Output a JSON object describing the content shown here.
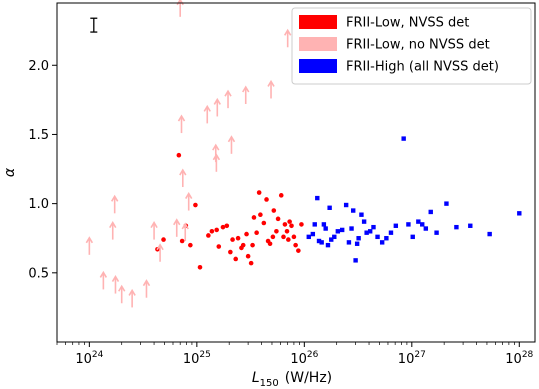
{
  "chart_data": {
    "type": "scatter",
    "xlabel_main": "L",
    "xlabel_sub": "150",
    "xlabel_unit": "(W/Hz)",
    "ylabel": "α",
    "xscale": "log",
    "xlim": [
      5e+23,
      1.4e+28
    ],
    "ylim": [
      0.0,
      2.45
    ],
    "grid": false,
    "legend_position": "top-right",
    "x_tick_labels": [
      {
        "value": 1e+24,
        "base": "10",
        "exp": "24"
      },
      {
        "value": 1e+25,
        "base": "10",
        "exp": "25"
      },
      {
        "value": 1e+26,
        "base": "10",
        "exp": "26"
      },
      {
        "value": 1e+27,
        "base": "10",
        "exp": "27"
      },
      {
        "value": 1e+28,
        "base": "10",
        "exp": "28"
      }
    ],
    "y_ticks": [
      {
        "value": 0.5,
        "label": "0.5"
      },
      {
        "value": 1.0,
        "label": "1.0"
      },
      {
        "value": 1.5,
        "label": "1.5"
      },
      {
        "value": 2.0,
        "label": "2.0"
      }
    ],
    "error_bar": {
      "x": 1.1e+24,
      "y_low": 2.24,
      "y_high": 2.34
    },
    "series": [
      {
        "name": "FRII-Low, NVSS det",
        "marker": "circle",
        "color": "#ff0000",
        "points": [
          [
            4.3e+24,
            0.67
          ],
          [
            4.9e+24,
            0.74
          ],
          [
            6.8e+24,
            1.35
          ],
          [
            7.3e+24,
            0.73
          ],
          [
            7.9e+24,
            0.84
          ],
          [
            8.7e+24,
            0.7
          ],
          [
            9.7e+24,
            0.99
          ],
          [
            1.07e+25,
            0.54
          ],
          [
            1.28e+25,
            0.77
          ],
          [
            1.38e+25,
            0.8
          ],
          [
            1.53e+25,
            0.81
          ],
          [
            1.6e+25,
            0.69
          ],
          [
            1.75e+25,
            0.83
          ],
          [
            1.9e+25,
            0.84
          ],
          [
            2.05e+25,
            0.65
          ],
          [
            2.15e+25,
            0.74
          ],
          [
            2.3e+25,
            0.6
          ],
          [
            2.42e+25,
            0.75
          ],
          [
            2.6e+25,
            0.68
          ],
          [
            2.7e+25,
            0.7
          ],
          [
            2.9e+25,
            0.78
          ],
          [
            3e+25,
            0.62
          ],
          [
            3.2e+25,
            0.57
          ],
          [
            3.3e+25,
            0.7
          ],
          [
            3.4e+25,
            0.9
          ],
          [
            3.6e+25,
            0.79
          ],
          [
            3.8e+25,
            1.08
          ],
          [
            3.9e+25,
            0.92
          ],
          [
            4.2e+25,
            0.86
          ],
          [
            4.45e+25,
            1.03
          ],
          [
            4.6e+25,
            0.73
          ],
          [
            4.8e+25,
            0.71
          ],
          [
            5.1e+25,
            0.76
          ],
          [
            5.2e+25,
            0.95
          ],
          [
            5.5e+25,
            0.8
          ],
          [
            5.7e+25,
            0.89
          ],
          [
            6.1e+25,
            1.06
          ],
          [
            6.4e+25,
            0.76
          ],
          [
            6.6e+25,
            0.85
          ],
          [
            6.9e+25,
            0.8
          ],
          [
            7.1e+25,
            0.74
          ],
          [
            7.3e+25,
            0.87
          ],
          [
            7.6e+25,
            0.84
          ],
          [
            8e+25,
            0.76
          ],
          [
            8.3e+25,
            0.7
          ],
          [
            8.8e+25,
            0.66
          ],
          [
            9.4e+25,
            0.85
          ]
        ]
      },
      {
        "name": "FRII-Low, no NVSS det",
        "marker": "arrow",
        "color": "#ffb3b3",
        "points": [
          [
            1e+24,
            0.63
          ],
          [
            1.35e+24,
            0.38
          ],
          [
            1.65e+24,
            0.74
          ],
          [
            1.72e+24,
            0.93
          ],
          [
            1.75e+24,
            0.35
          ],
          [
            2e+24,
            0.28
          ],
          [
            2.5e+24,
            0.25
          ],
          [
            3.4e+24,
            0.32
          ],
          [
            4e+24,
            0.74
          ],
          [
            4.55e+24,
            0.58
          ],
          [
            6.5e+24,
            0.76
          ],
          [
            7e+24,
            2.35
          ],
          [
            7.2e+24,
            1.51
          ],
          [
            7.4e+24,
            1.12
          ],
          [
            7.8e+24,
            0.73
          ],
          [
            8.4e+24,
            0.95
          ],
          [
            1.25e+25,
            1.58
          ],
          [
            1.5e+25,
            1.3
          ],
          [
            1.52e+25,
            1.23
          ],
          [
            1.55e+25,
            1.63
          ],
          [
            1.95e+25,
            1.69
          ],
          [
            2.1e+25,
            1.36
          ],
          [
            2.85e+25,
            1.72
          ],
          [
            4.9e+25,
            1.76
          ],
          [
            7e+25,
            2.13
          ]
        ]
      },
      {
        "name": "FRII-High (all NVSS det)",
        "marker": "square",
        "color": "#0000ff",
        "points": [
          [
            1.1e+26,
            0.76
          ],
          [
            1.2e+26,
            0.78
          ],
          [
            1.25e+26,
            0.85
          ],
          [
            1.32e+26,
            1.04
          ],
          [
            1.37e+26,
            0.73
          ],
          [
            1.45e+26,
            0.72
          ],
          [
            1.52e+26,
            0.85
          ],
          [
            1.58e+26,
            0.82
          ],
          [
            1.66e+26,
            0.7
          ],
          [
            1.72e+26,
            0.97
          ],
          [
            1.78e+26,
            0.74
          ],
          [
            1.9e+26,
            0.76
          ],
          [
            2.05e+26,
            0.8
          ],
          [
            2.25e+26,
            0.81
          ],
          [
            2.45e+26,
            0.99
          ],
          [
            2.6e+26,
            0.72
          ],
          [
            2.75e+26,
            0.82
          ],
          [
            2.85e+26,
            0.95
          ],
          [
            3e+26,
            0.59
          ],
          [
            3.1e+26,
            0.71
          ],
          [
            3.2e+26,
            0.75
          ],
          [
            3.4e+26,
            0.92
          ],
          [
            3.6e+26,
            0.87
          ],
          [
            3.8e+26,
            0.79
          ],
          [
            4.1e+26,
            0.8
          ],
          [
            4.4e+26,
            0.83
          ],
          [
            4.8e+26,
            0.76
          ],
          [
            5.3e+26,
            0.72
          ],
          [
            5.8e+26,
            0.75
          ],
          [
            6.4e+26,
            0.79
          ],
          [
            7.1e+26,
            0.84
          ],
          [
            8.4e+26,
            1.47
          ],
          [
            9.3e+26,
            0.85
          ],
          [
            1.02e+27,
            0.76
          ],
          [
            1.15e+27,
            0.87
          ],
          [
            1.25e+27,
            0.85
          ],
          [
            1.35e+27,
            0.82
          ],
          [
            1.5e+27,
            0.94
          ],
          [
            1.7e+27,
            0.79
          ],
          [
            2.1e+27,
            1.0
          ],
          [
            2.6e+27,
            0.83
          ],
          [
            3.5e+27,
            0.84
          ],
          [
            5.3e+27,
            0.78
          ],
          [
            1e+28,
            0.93
          ]
        ]
      }
    ]
  }
}
